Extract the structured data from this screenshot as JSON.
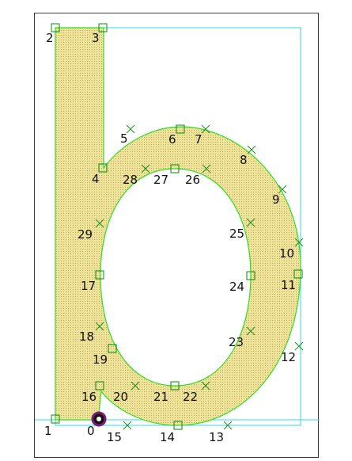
{
  "window": {
    "title": ""
  },
  "colors": {
    "glyph_fill": "#efe39a",
    "glyph_stroke": "#33dd22",
    "bbox_stroke": "#33d8ea",
    "on_point": "#0a8a0a",
    "off_point": "#1f8f1f",
    "selected_point": "#7a1a7a",
    "frame": "#3a3a3a"
  },
  "points": [
    {
      "id": "0",
      "label": "0",
      "kind": "selected"
    },
    {
      "id": "1",
      "label": "1",
      "kind": "on"
    },
    {
      "id": "2",
      "label": "2",
      "kind": "on"
    },
    {
      "id": "3",
      "label": "3",
      "kind": "on"
    },
    {
      "id": "4",
      "label": "4",
      "kind": "on"
    },
    {
      "id": "5",
      "label": "5",
      "kind": "off"
    },
    {
      "id": "6",
      "label": "6",
      "kind": "on"
    },
    {
      "id": "7",
      "label": "7",
      "kind": "off"
    },
    {
      "id": "8",
      "label": "8",
      "kind": "off"
    },
    {
      "id": "9",
      "label": "9",
      "kind": "off"
    },
    {
      "id": "10",
      "label": "10",
      "kind": "off"
    },
    {
      "id": "11",
      "label": "11",
      "kind": "on"
    },
    {
      "id": "12",
      "label": "12",
      "kind": "off"
    },
    {
      "id": "13",
      "label": "13",
      "kind": "off"
    },
    {
      "id": "14",
      "label": "14",
      "kind": "on"
    },
    {
      "id": "15",
      "label": "15",
      "kind": "off"
    },
    {
      "id": "16",
      "label": "16",
      "kind": "on"
    },
    {
      "id": "17",
      "label": "17",
      "kind": "on"
    },
    {
      "id": "18",
      "label": "18",
      "kind": "off"
    },
    {
      "id": "19",
      "label": "19",
      "kind": "on"
    },
    {
      "id": "20",
      "label": "20",
      "kind": "off"
    },
    {
      "id": "21",
      "label": "21",
      "kind": "on"
    },
    {
      "id": "22",
      "label": "22",
      "kind": "off"
    },
    {
      "id": "23",
      "label": "23",
      "kind": "off"
    },
    {
      "id": "24",
      "label": "24",
      "kind": "on"
    },
    {
      "id": "25",
      "label": "25",
      "kind": "off"
    },
    {
      "id": "26",
      "label": "26",
      "kind": "off"
    },
    {
      "id": "27",
      "label": "27",
      "kind": "on"
    },
    {
      "id": "28",
      "label": "28",
      "kind": "off"
    },
    {
      "id": "29",
      "label": "29",
      "kind": "off"
    }
  ]
}
